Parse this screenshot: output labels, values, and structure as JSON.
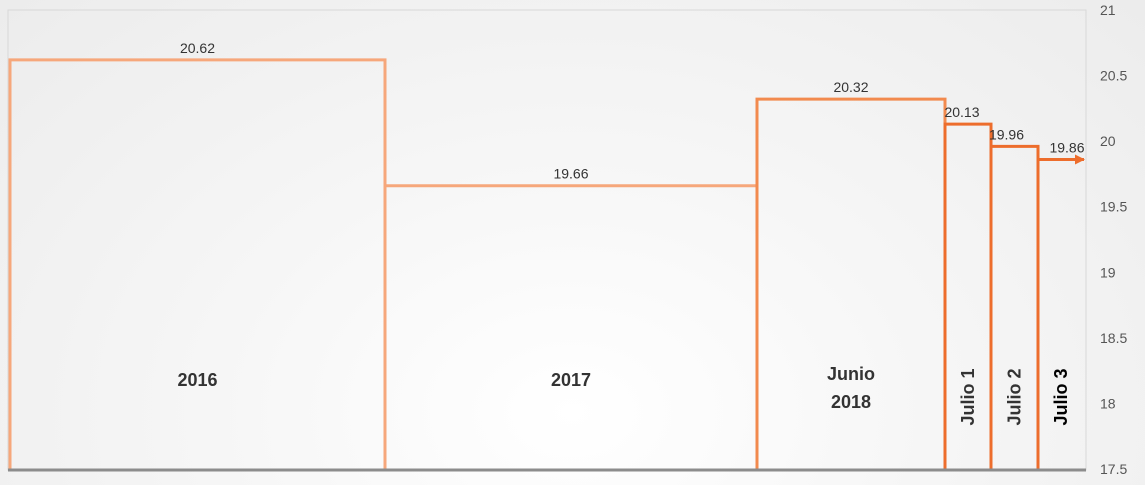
{
  "chart_data": {
    "type": "bar",
    "categories": [
      "2016",
      "2017",
      "Junio 2018",
      "Julio 1",
      "Julio 2",
      "Julio 3"
    ],
    "values": [
      20.62,
      19.66,
      20.32,
      20.13,
      19.96,
      19.86
    ],
    "value_labels": [
      "20.62",
      "19.66",
      "20.32",
      "20.13",
      "19.96",
      "19.86"
    ],
    "title": "",
    "xlabel": "",
    "ylabel": "",
    "ylim": [
      17.5,
      21
    ],
    "yticks": [
      "17.5",
      "18",
      "18.5",
      "19",
      "19.5",
      "20",
      "20.5",
      "21"
    ],
    "ytick_values": [
      17.5,
      18,
      18.5,
      19,
      19.5,
      20,
      20.5,
      21
    ],
    "y_axis_position": "right",
    "grid": false,
    "legend": "none",
    "colors": {
      "light": "#f6a77b",
      "mid": "#f28a4e",
      "dark": "#ed6d2c",
      "baseline": "#8c8c8c"
    }
  }
}
